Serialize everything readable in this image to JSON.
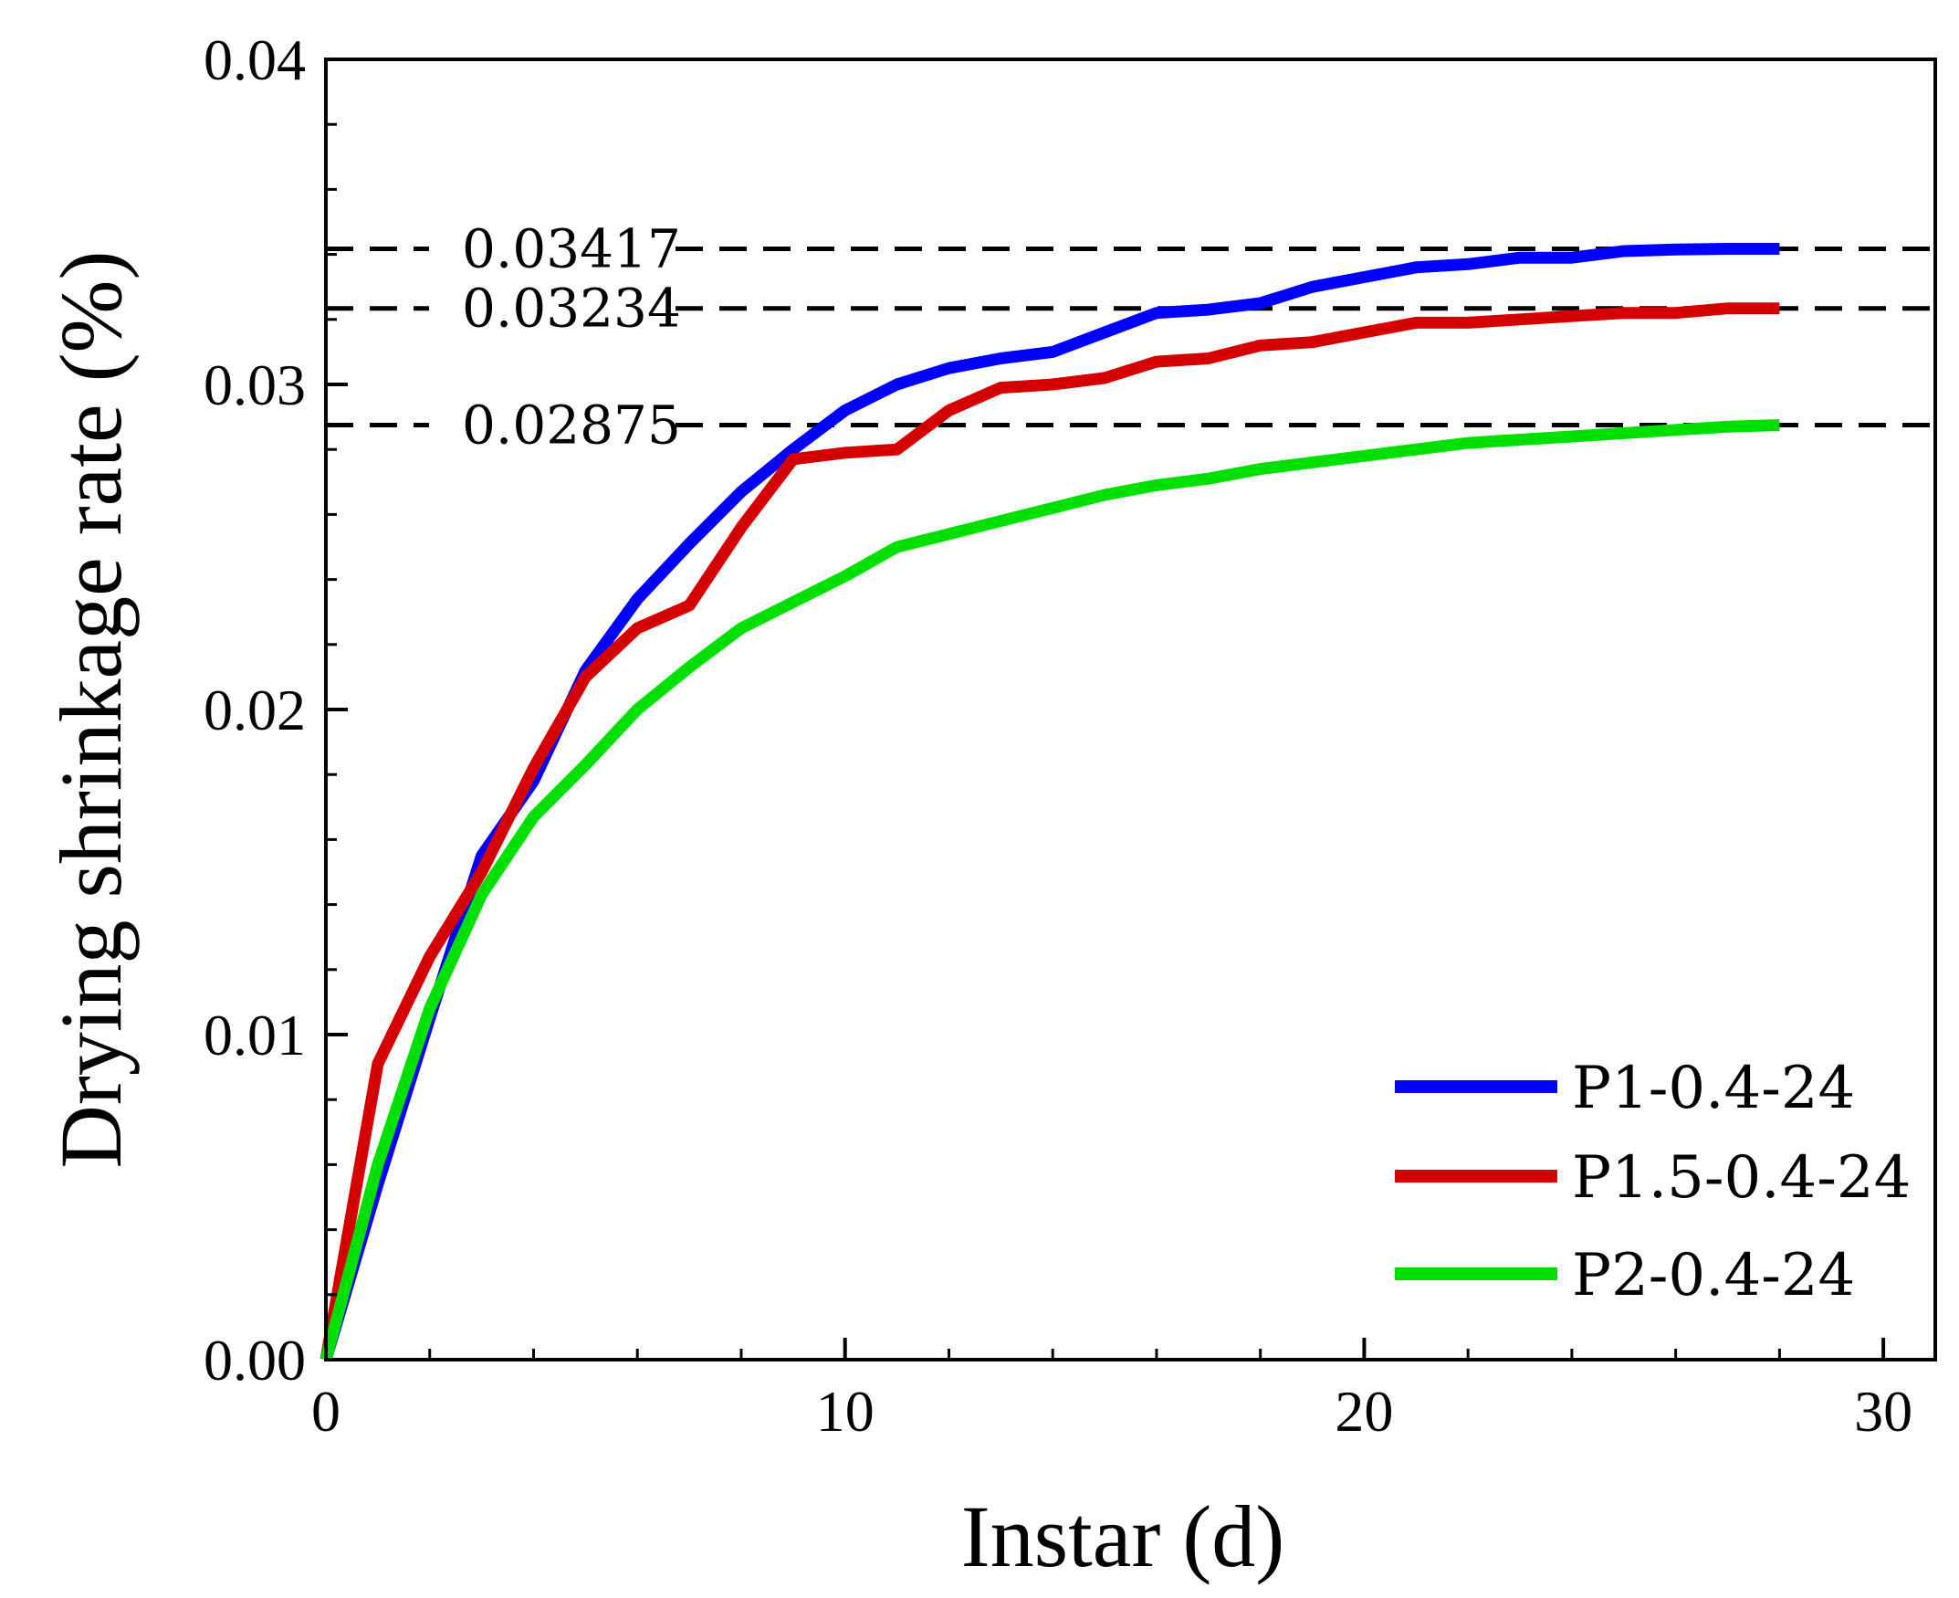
{
  "chart_data": {
    "type": "line",
    "title": "",
    "xlabel": "Instar (d)",
    "ylabel": "Drying shrinkage rate (%)",
    "xlim": [
      0,
      31
    ],
    "ylim": [
      0,
      0.04
    ],
    "x_ticks": [
      0,
      10,
      20,
      30
    ],
    "x_tick_labels": [
      "0",
      "10",
      "20",
      "30"
    ],
    "y_ticks": [
      0,
      0.01,
      0.02,
      0.03,
      0.04
    ],
    "y_tick_labels": [
      "0.00",
      "0.01",
      "0.02",
      "0.03",
      "0.04"
    ],
    "grid": false,
    "legend_position": "bottom-right",
    "series": [
      {
        "name": "P1-0.4-24",
        "color": "#0000ff",
        "x": [
          0,
          1,
          2,
          3,
          4,
          5,
          6,
          7,
          8,
          9,
          10,
          11,
          12,
          13,
          14,
          15,
          16,
          17,
          18,
          19,
          20,
          21,
          22,
          23,
          24,
          25,
          26,
          27,
          28
        ],
        "values": [
          0,
          0.0054,
          0.0105,
          0.0155,
          0.0178,
          0.0212,
          0.0234,
          0.0251,
          0.0267,
          0.028,
          0.0292,
          0.03,
          0.0305,
          0.0308,
          0.031,
          0.0316,
          0.0322,
          0.0323,
          0.0325,
          0.033,
          0.0333,
          0.0336,
          0.0337,
          0.0339,
          0.0339,
          0.0341,
          0.03415,
          0.03417,
          0.03417
        ]
      },
      {
        "name": "P1.5-0.4-24",
        "color": "#d40000",
        "x": [
          0,
          1,
          2,
          3,
          4,
          5,
          6,
          7,
          8,
          9,
          10,
          11,
          12,
          13,
          14,
          15,
          16,
          17,
          18,
          19,
          20,
          21,
          22,
          23,
          24,
          25,
          26,
          27,
          28
        ],
        "values": [
          0,
          0.0091,
          0.0124,
          0.015,
          0.0182,
          0.021,
          0.0225,
          0.0232,
          0.0256,
          0.0277,
          0.0279,
          0.028,
          0.0292,
          0.0299,
          0.03,
          0.0302,
          0.0307,
          0.0308,
          0.0312,
          0.0313,
          0.0316,
          0.0319,
          0.0319,
          0.032,
          0.0321,
          0.0322,
          0.0322,
          0.03234,
          0.03234
        ]
      },
      {
        "name": "P2-0.4-24",
        "color": "#00e000",
        "x": [
          0,
          1,
          2,
          3,
          4,
          5,
          6,
          7,
          8,
          9,
          10,
          11,
          12,
          13,
          14,
          15,
          16,
          17,
          18,
          19,
          20,
          21,
          22,
          23,
          24,
          25,
          26,
          27,
          28
        ],
        "values": [
          0,
          0.006,
          0.0108,
          0.0143,
          0.0167,
          0.0183,
          0.02,
          0.0213,
          0.0225,
          0.0233,
          0.0241,
          0.025,
          0.0254,
          0.0258,
          0.0262,
          0.0266,
          0.0269,
          0.0271,
          0.0274,
          0.0276,
          0.0278,
          0.028,
          0.0282,
          0.0283,
          0.0284,
          0.0285,
          0.0286,
          0.0287,
          0.02875
        ]
      }
    ],
    "reference_lines": [
      {
        "value": 0.03417,
        "label": "0.03417"
      },
      {
        "value": 0.03234,
        "label": "0.03234"
      },
      {
        "value": 0.02875,
        "label": "0.02875"
      }
    ]
  }
}
